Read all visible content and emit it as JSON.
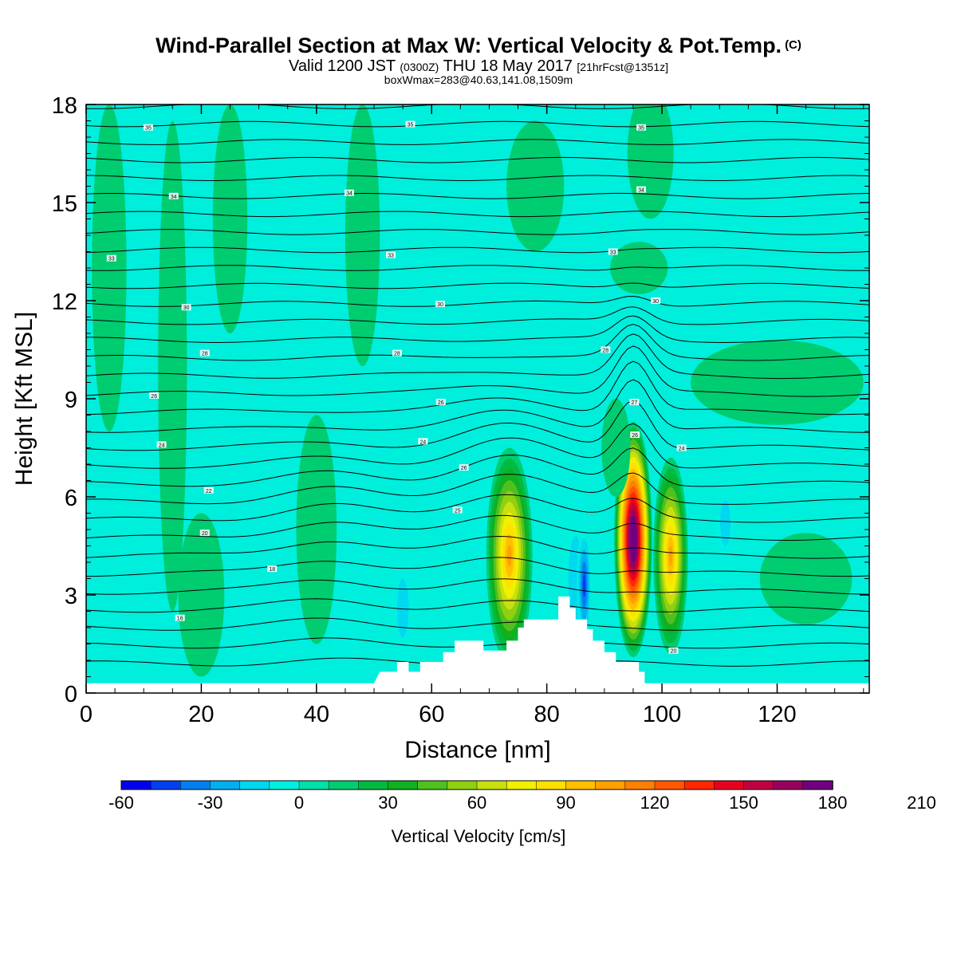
{
  "header": {
    "title": "Wind-Parallel Section at Max W: Vertical Velocity & Pot.Temp.",
    "title_mark": "(C)",
    "valid_prefix": "Valid 1200 JST",
    "valid_z": "(0300Z)",
    "valid_date": "THU 18 May 2017",
    "fcst": "[21hrFcst@1351z]",
    "boxline": "boxWmax=283@40.63,141.08,1509m"
  },
  "chart_data": {
    "type": "heatmap",
    "xlabel": "Distance [nm]",
    "ylabel": "Height [Kft MSL]",
    "xlim": [
      0,
      136
    ],
    "ylim": [
      0,
      18
    ],
    "x_ticks": [
      0,
      20,
      40,
      60,
      80,
      100,
      120
    ],
    "y_ticks": [
      0,
      3,
      6,
      9,
      12,
      15,
      18
    ],
    "colorbar": {
      "label": "Vertical Velocity [cm/s]",
      "min": -60,
      "step": 10,
      "tick_values": [
        -60,
        -30,
        0,
        30,
        60,
        90,
        120,
        150,
        180,
        210
      ],
      "colors": [
        "#0000ee",
        "#0040f0",
        "#0080f0",
        "#00b0f0",
        "#00d8f0",
        "#00f0e0",
        "#00e0a8",
        "#00cc70",
        "#00bb40",
        "#10b020",
        "#50c020",
        "#90d010",
        "#c8e010",
        "#f0f000",
        "#ffe000",
        "#ffc000",
        "#ffa000",
        "#ff8000",
        "#ff5800",
        "#ff2800",
        "#e80020",
        "#c00040",
        "#980060",
        "#700080"
      ]
    },
    "max_w": 283,
    "theta_labels": [
      {
        "x": 10.8,
        "y": 17.3,
        "text": "35"
      },
      {
        "x": 56.3,
        "y": 17.4,
        "text": "35"
      },
      {
        "x": 96.4,
        "y": 17.3,
        "text": "35"
      },
      {
        "x": 15.2,
        "y": 15.2,
        "text": "34"
      },
      {
        "x": 45.7,
        "y": 15.3,
        "text": "34"
      },
      {
        "x": 96.4,
        "y": 15.4,
        "text": "34"
      },
      {
        "x": 4.4,
        "y": 13.3,
        "text": "33"
      },
      {
        "x": 52.9,
        "y": 13.4,
        "text": "33"
      },
      {
        "x": 91.5,
        "y": 13.5,
        "text": "33"
      },
      {
        "x": 17.4,
        "y": 11.8,
        "text": "30"
      },
      {
        "x": 61.5,
        "y": 11.9,
        "text": "30"
      },
      {
        "x": 98.9,
        "y": 12.0,
        "text": "30"
      },
      {
        "x": 20.6,
        "y": 10.4,
        "text": "28"
      },
      {
        "x": 54.0,
        "y": 10.4,
        "text": "28"
      },
      {
        "x": 90.2,
        "y": 10.5,
        "text": "28"
      },
      {
        "x": 11.8,
        "y": 9.1,
        "text": "26"
      },
      {
        "x": 61.6,
        "y": 8.9,
        "text": "26"
      },
      {
        "x": 95.2,
        "y": 8.9,
        "text": "27"
      },
      {
        "x": 13.1,
        "y": 7.6,
        "text": "24"
      },
      {
        "x": 58.5,
        "y": 7.7,
        "text": "24"
      },
      {
        "x": 95.3,
        "y": 7.9,
        "text": "26"
      },
      {
        "x": 103.4,
        "y": 7.5,
        "text": "24"
      },
      {
        "x": 65.6,
        "y": 6.9,
        "text": "26"
      },
      {
        "x": 21.3,
        "y": 6.2,
        "text": "22"
      },
      {
        "x": 64.5,
        "y": 5.6,
        "text": "25"
      },
      {
        "x": 20.6,
        "y": 4.9,
        "text": "20"
      },
      {
        "x": 32.3,
        "y": 3.8,
        "text": "18"
      },
      {
        "x": 16.3,
        "y": 2.3,
        "text": "16"
      },
      {
        "x": 102.0,
        "y": 1.3,
        "text": "20"
      }
    ]
  }
}
